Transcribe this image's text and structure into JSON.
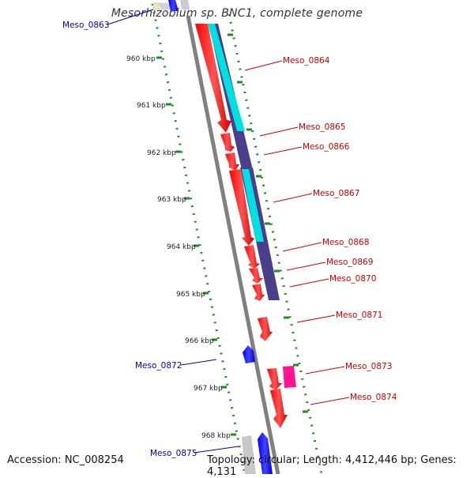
{
  "title": "Mesorhizobium sp. BNC1, complete genome",
  "accession": "Accession: NC_008254",
  "topology": "Topology: circular; Length: 4,412,446 bp; Genes: 4,131",
  "ticks": [
    "960 kbp",
    "961 kbp",
    "962 kbp",
    "963 kbp",
    "964 kbp",
    "965 kbp",
    "966 kbp",
    "967 kbp",
    "968 kbp"
  ],
  "genes": {
    "g0863": "Meso_0863",
    "g0864": "Meso_0864",
    "g0865": "Meso_0865",
    "g0866": "Meso_0866",
    "g0867": "Meso_0867",
    "g0868": "Meso_0868",
    "g0869": "Meso_0869",
    "g0870": "Meso_0870",
    "g0871": "Meso_0871",
    "g0872": "Meso_0872",
    "g0873": "Meso_0873",
    "g0874": "Meso_0874",
    "g0875": "Meso_0875"
  },
  "colors": {
    "forward_cds": "#ff0000",
    "reverse_cds": "#0000ff",
    "forward_label": "#cc0000",
    "reverse_label": "#0000aa",
    "cog_a": "#4b3f8c",
    "cog_b": "#00e0e0",
    "cog_c": "#ff1493",
    "backbone": "#808080",
    "tick_green": "#1e8c1e"
  }
}
